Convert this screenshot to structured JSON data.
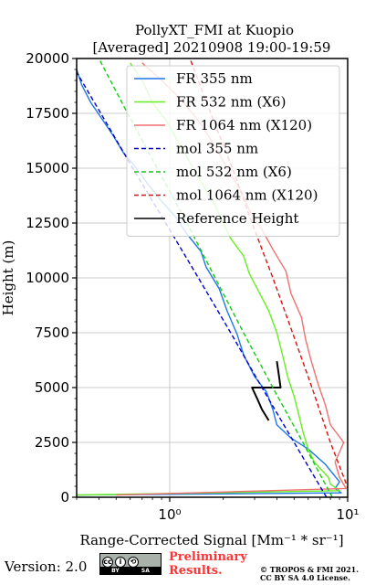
{
  "chart_data": {
    "type": "line",
    "title": [
      "PollyXT_FMI at Kuopio",
      "[Averaged] 20210908 19:00-19:59"
    ],
    "xlabel": "Range-Corrected Signal [Mm⁻¹ * sr⁻¹]",
    "ylabel": "Height (m)",
    "xscale": "log",
    "xlim": [
      0.3,
      10
    ],
    "ylim": [
      0,
      20000
    ],
    "xticks": [
      {
        "value": 1,
        "label": "10⁰"
      },
      {
        "value": 10,
        "label": "10¹"
      }
    ],
    "yticks": [
      0,
      2500,
      5000,
      7500,
      10000,
      12500,
      15000,
      17500,
      20000
    ],
    "grid": true,
    "legend_position": "top-right",
    "series": [
      {
        "name": "FR 355 nm",
        "color": "#1f77e6",
        "style": "solid",
        "points": [
          [
            0.3,
            100
          ],
          [
            9.2,
            200
          ],
          [
            8.5,
            400
          ],
          [
            9.0,
            700
          ],
          [
            7.5,
            1500
          ],
          [
            6.0,
            2200
          ],
          [
            4.8,
            2700
          ],
          [
            4.0,
            3300
          ],
          [
            3.8,
            4000
          ],
          [
            3.5,
            4800
          ],
          [
            3.0,
            5500
          ],
          [
            2.6,
            6500
          ],
          [
            2.4,
            7400
          ],
          [
            2.1,
            8500
          ],
          [
            1.9,
            9500
          ],
          [
            1.6,
            10500
          ],
          [
            1.5,
            11200
          ],
          [
            1.25,
            12000
          ],
          [
            1.1,
            12700
          ],
          [
            0.9,
            13500
          ],
          [
            0.75,
            14300
          ],
          [
            0.65,
            15000
          ],
          [
            0.55,
            15700
          ],
          [
            0.48,
            16500
          ],
          [
            0.42,
            17200
          ],
          [
            0.36,
            18000
          ],
          [
            0.32,
            18800
          ],
          [
            0.3,
            19500
          ]
        ]
      },
      {
        "name": "FR 532 nm (X6)",
        "color": "#66ee22",
        "style": "solid",
        "points": [
          [
            0.3,
            100
          ],
          [
            9.0,
            300
          ],
          [
            8.0,
            600
          ],
          [
            7.8,
            900
          ],
          [
            6.5,
            1600
          ],
          [
            6.0,
            2200
          ],
          [
            5.6,
            3000
          ],
          [
            5.3,
            3800
          ],
          [
            5.0,
            4600
          ],
          [
            4.6,
            5500
          ],
          [
            4.3,
            6500
          ],
          [
            4.0,
            7500
          ],
          [
            3.6,
            8500
          ],
          [
            3.2,
            9300
          ],
          [
            2.8,
            10200
          ],
          [
            2.6,
            11000
          ],
          [
            2.2,
            11800
          ],
          [
            2.0,
            12500
          ],
          [
            1.8,
            13300
          ],
          [
            1.6,
            14000
          ],
          [
            1.4,
            14800
          ],
          [
            1.25,
            15500
          ],
          [
            1.1,
            16300
          ],
          [
            0.95,
            17200
          ],
          [
            0.8,
            18000
          ],
          [
            0.7,
            19000
          ],
          [
            0.6,
            19800
          ]
        ]
      },
      {
        "name": "FR 1064 nm (X120)",
        "color": "#f07070",
        "style": "solid",
        "points": [
          [
            0.5,
            100
          ],
          [
            9.8,
            400
          ],
          [
            9.0,
            900
          ],
          [
            8.5,
            1600
          ],
          [
            9.5,
            2500
          ],
          [
            8.0,
            3300
          ],
          [
            7.5,
            4200
          ],
          [
            6.8,
            5200
          ],
          [
            6.2,
            6300
          ],
          [
            5.8,
            7200
          ],
          [
            5.5,
            8200
          ],
          [
            4.8,
            9300
          ],
          [
            4.5,
            10300
          ],
          [
            3.8,
            11300
          ],
          [
            3.3,
            12200
          ],
          [
            2.8,
            13100
          ],
          [
            2.5,
            14000
          ],
          [
            2.1,
            15000
          ],
          [
            1.8,
            16000
          ],
          [
            1.5,
            17000
          ],
          [
            1.2,
            18000
          ],
          [
            0.9,
            19000
          ],
          [
            0.7,
            19800
          ]
        ]
      },
      {
        "name": "mol 355 nm",
        "color": "#0000cc",
        "style": "dashed",
        "points": [
          [
            7.6,
            0
          ],
          [
            5.0,
            2500
          ],
          [
            3.3,
            5000
          ],
          [
            2.2,
            7500
          ],
          [
            1.45,
            10000
          ],
          [
            0.95,
            12500
          ],
          [
            0.62,
            15000
          ],
          [
            0.41,
            17500
          ],
          [
            0.27,
            20000
          ]
        ]
      },
      {
        "name": "mol 532 nm (X6)",
        "color": "#11cc11",
        "style": "dashed",
        "points": [
          [
            8.2,
            0
          ],
          [
            5.6,
            2500
          ],
          [
            3.8,
            5000
          ],
          [
            2.6,
            7500
          ],
          [
            1.8,
            10000
          ],
          [
            1.25,
            12500
          ],
          [
            0.85,
            15000
          ],
          [
            0.58,
            17500
          ],
          [
            0.4,
            20000
          ]
        ]
      },
      {
        "name": "mol 1064 nm (X120)",
        "color": "#dd1111",
        "style": "dashed",
        "points": [
          [
            10.5,
            0
          ],
          [
            8.0,
            2500
          ],
          [
            6.3,
            5000
          ],
          [
            4.9,
            7500
          ],
          [
            3.8,
            10000
          ],
          [
            2.9,
            12500
          ],
          [
            2.25,
            15000
          ],
          [
            1.7,
            17500
          ],
          [
            1.3,
            20000
          ]
        ]
      },
      {
        "name": "Reference Height",
        "color": "#000000",
        "style": "solid",
        "points": [
          [
            3.6,
            3500
          ],
          [
            3.3,
            4000
          ],
          [
            3.1,
            4500
          ],
          [
            2.9,
            5000
          ],
          [
            4.2,
            5000
          ],
          [
            4.1,
            5600
          ],
          [
            4.0,
            6200
          ]
        ]
      }
    ]
  },
  "footer": {
    "version": "Version: 2.0",
    "cc_labels": [
      "BY",
      "SA"
    ],
    "prelim_line1": "Preliminary",
    "prelim_line2": "Results.",
    "copyright_line1": "© TROPOS & FMI 2021.",
    "copyright_line2": "CC BY SA 4.0 License."
  }
}
